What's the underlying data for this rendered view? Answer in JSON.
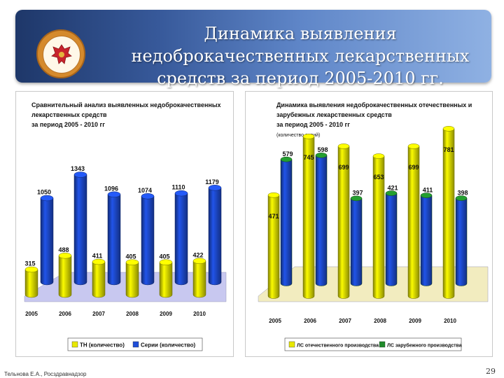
{
  "header": {
    "title_lines": [
      "Динамика выявления",
      "недоброкачественных лекарственных",
      "средств за период 2005-2010 гг."
    ]
  },
  "colors": {
    "yellow": "#e8e800",
    "blue": "#1f4ed8",
    "green": "#1f8a2a",
    "floor": "#c8c8f0",
    "floor_right": "#f2ecbf"
  },
  "chart_data": [
    {
      "type": "bar",
      "title_lines": [
        "Сравнительный анализ выявленных недоброкачественных",
        "лекарственных средств",
        "за период 2005 - 2010 гг"
      ],
      "categories": [
        "2005",
        "2006",
        "2007",
        "2008",
        "2009",
        "2010"
      ],
      "series": [
        {
          "name": "ТН (количество)",
          "color": "yellow",
          "values": [
            315,
            488,
            411,
            405,
            405,
            422
          ]
        },
        {
          "name": "Серии (количество)",
          "color": "blue",
          "values": [
            1050,
            1343,
            1096,
            1074,
            1110,
            1179
          ]
        }
      ],
      "ylim": [
        0,
        1400
      ],
      "legend": "bottom"
    },
    {
      "type": "bar",
      "title_lines": [
        "Динамика выявления недоброкачественных отечественных и",
        "зарубежных лекарственных средств",
        "за период 2005 - 2010 гг"
      ],
      "subtitle": "(количество серий)",
      "categories": [
        "2005",
        "2006",
        "2007",
        "2008",
        "2009",
        "2010"
      ],
      "series": [
        {
          "name": "ЛС отечественного производства",
          "color": "yellow",
          "values": [
            471,
            745,
            699,
            653,
            699,
            781
          ]
        },
        {
          "name": "ЛС зарубежного производства",
          "color": "green",
          "values": [
            579,
            598,
            397,
            421,
            411,
            398
          ]
        }
      ],
      "ylim": [
        0,
        800
      ],
      "legend": "bottom"
    }
  ],
  "footer": {
    "author": "Тельнова Е.А., Росздравнадзор",
    "page": "29"
  }
}
